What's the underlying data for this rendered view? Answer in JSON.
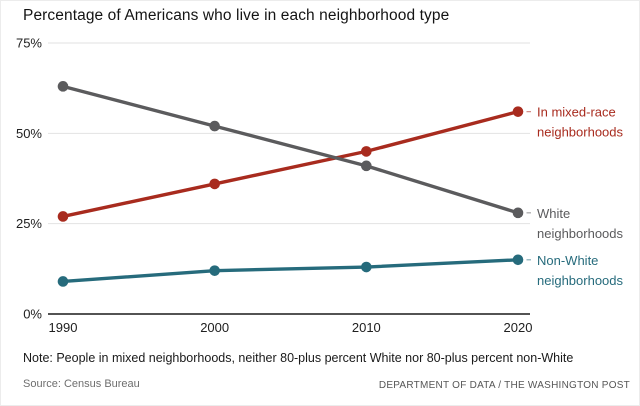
{
  "title": "Percentage of Americans who live in each neighborhood type",
  "note": "Note: People in mixed neighborhoods, neither 80-plus percent White nor 80-plus percent non-White",
  "source": "Source: Census Bureau",
  "attribution": "DEPARTMENT OF DATA / THE WASHINGTON POST",
  "colors": {
    "mixed_red": "#a82b1e",
    "white_gray": "#5b5b5d",
    "nonwhite_teal": "#266b7c",
    "gridline": "#e2e2e2",
    "axis": "#1a1a1a",
    "tick_text": "#202020"
  },
  "chart_data": {
    "type": "line",
    "title": "Percentage of Americans who live in each neighborhood type",
    "x": [
      1990,
      2000,
      2010,
      2020
    ],
    "xlabel": "",
    "ylabel": "",
    "ylim": [
      0,
      75
    ],
    "yticks": [
      {
        "value": 75,
        "label": "75%"
      },
      {
        "value": 50,
        "label": "50%"
      },
      {
        "value": 25,
        "label": "25%"
      },
      {
        "value": 0,
        "label": "0%"
      }
    ],
    "grid": "horizontal",
    "legend_position": "labels-at-line-ends-right",
    "series": [
      {
        "name": "In mixed-race neighborhoods",
        "label_lines": [
          "In mixed-race",
          "neighborhoods"
        ],
        "color": "#a82b1e",
        "values": [
          27,
          36,
          45,
          56
        ]
      },
      {
        "name": "White neighborhoods",
        "label_lines": [
          "White",
          "neighborhoods"
        ],
        "color": "#5b5b5d",
        "values": [
          63,
          52,
          41,
          28
        ]
      },
      {
        "name": "Non-White neighborhoods",
        "label_lines": [
          "Non-White",
          "neighborhoods"
        ],
        "color": "#266b7c",
        "values": [
          9,
          12,
          13,
          15
        ]
      }
    ]
  }
}
